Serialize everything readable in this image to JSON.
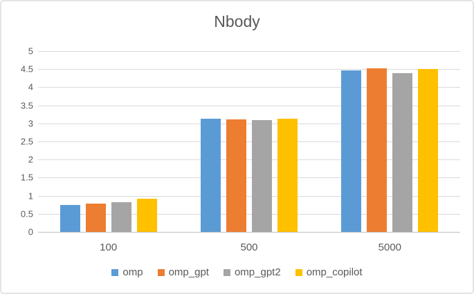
{
  "chart_data": {
    "type": "bar",
    "title": "Nbody",
    "categories": [
      "100",
      "500",
      "5000"
    ],
    "series": [
      {
        "name": "omp",
        "color": "#5B9BD5",
        "values": [
          0.75,
          3.13,
          4.47
        ]
      },
      {
        "name": "omp_gpt",
        "color": "#ED7D31",
        "values": [
          0.78,
          3.11,
          4.52
        ]
      },
      {
        "name": "omp_gpt2",
        "color": "#A5A5A5",
        "values": [
          0.82,
          3.1,
          4.38
        ]
      },
      {
        "name": "omp_copilot",
        "color": "#FFC000",
        "values": [
          0.92,
          3.13,
          4.5
        ]
      }
    ],
    "xlabel": "",
    "ylabel": "",
    "ylim": [
      0,
      5
    ],
    "ytick_step": 0.5,
    "yticks": [
      "0",
      "0.5",
      "1",
      "1.5",
      "2",
      "2.5",
      "3",
      "3.5",
      "4",
      "4.5",
      "5"
    ],
    "grid": true,
    "legend_position": "bottom"
  },
  "colors": {
    "gridline": "#d9d9d9",
    "axis_line": "#bfbfbf",
    "text": "#595959",
    "frame_border": "#e4e4e4",
    "background": "#ffffff"
  }
}
